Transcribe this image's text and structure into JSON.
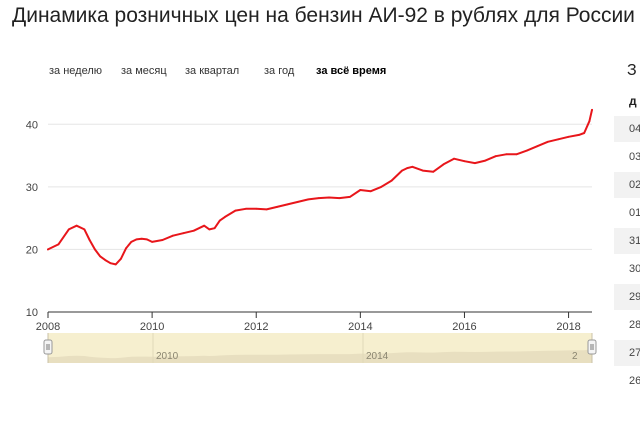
{
  "page": {
    "title": "Динамика розничных цен на бензин АИ-92 в рублях для России"
  },
  "tabs": [
    {
      "label": "за неделю",
      "active": false
    },
    {
      "label": "за месяц",
      "active": false
    },
    {
      "label": "за квартал",
      "active": false
    },
    {
      "label": "за год",
      "active": false
    },
    {
      "label": "за всё время",
      "active": true
    }
  ],
  "colors": {
    "line": "#e8161b",
    "grid": "#e5e5e5",
    "axis": "#333333",
    "navigator_bg": "#f6efcf",
    "navigator_area": "#e8dfc0"
  },
  "navigator": {
    "labels": [
      "2010",
      "2014",
      "2"
    ]
  },
  "side_panel": {
    "heading_letter": "З",
    "column_header": "д",
    "rows": [
      "04",
      "03",
      "02",
      "01",
      "31",
      "30",
      "29",
      "28",
      "27",
      "26"
    ]
  },
  "chart_data": {
    "type": "line",
    "title": "Динамика розничных цен на бензин АИ-92 в рублях для России",
    "xlabel": "",
    "ylabel": "",
    "xlim": [
      2008.0,
      2018.45
    ],
    "ylim": [
      10,
      45
    ],
    "x_ticks": [
      "2008",
      "2010",
      "2012",
      "2014",
      "2016",
      "2018"
    ],
    "y_ticks": [
      "10",
      "20",
      "30",
      "40"
    ],
    "grid": true,
    "series": [
      {
        "x": [
          2008.0,
          2008.2,
          2008.4,
          2008.55,
          2008.7,
          2008.8,
          2008.9,
          2009.0,
          2009.1,
          2009.2,
          2009.3,
          2009.4,
          2009.5,
          2009.6,
          2009.7,
          2009.8,
          2009.9,
          2010.0,
          2010.2,
          2010.4,
          2010.6,
          2010.8,
          2011.0,
          2011.1,
          2011.2,
          2011.3,
          2011.4,
          2011.6,
          2011.8,
          2012.0,
          2012.2,
          2012.4,
          2012.6,
          2012.8,
          2013.0,
          2013.2,
          2013.4,
          2013.6,
          2013.8,
          2014.0,
          2014.2,
          2014.4,
          2014.6,
          2014.8,
          2014.9,
          2015.0,
          2015.2,
          2015.4,
          2015.6,
          2015.8,
          2016.0,
          2016.2,
          2016.4,
          2016.6,
          2016.8,
          2017.0,
          2017.2,
          2017.4,
          2017.6,
          2017.8,
          2018.0,
          2018.2,
          2018.3,
          2018.4,
          2018.45
        ],
        "y": [
          20.0,
          20.8,
          23.2,
          23.8,
          23.2,
          21.5,
          20.0,
          18.9,
          18.3,
          17.8,
          17.6,
          18.5,
          20.2,
          21.2,
          21.6,
          21.7,
          21.6,
          21.2,
          21.5,
          22.2,
          22.6,
          23.0,
          23.8,
          23.2,
          23.4,
          24.6,
          25.2,
          26.2,
          26.5,
          26.5,
          26.4,
          26.8,
          27.2,
          27.6,
          28.0,
          28.2,
          28.3,
          28.2,
          28.4,
          29.5,
          29.3,
          30.0,
          31.0,
          32.6,
          33.0,
          33.2,
          32.6,
          32.4,
          33.6,
          34.5,
          34.1,
          33.8,
          34.2,
          34.9,
          35.2,
          35.2,
          35.8,
          36.5,
          37.2,
          37.6,
          38.0,
          38.3,
          38.6,
          40.5,
          42.3
        ]
      }
    ]
  }
}
